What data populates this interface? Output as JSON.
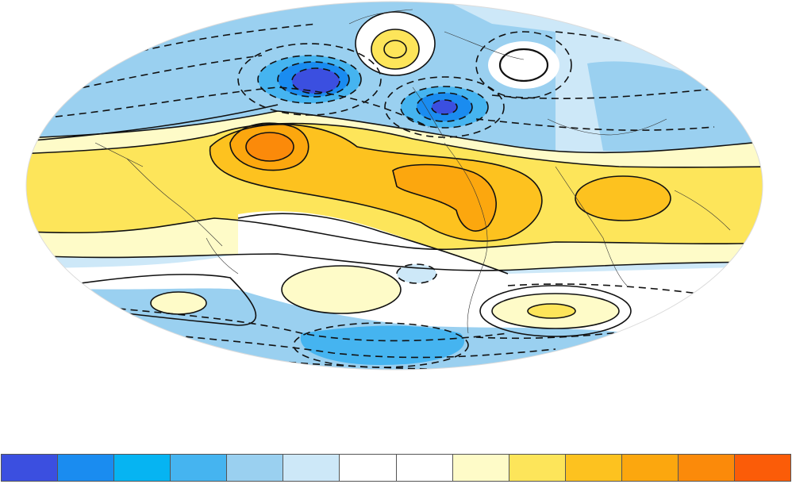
{
  "map": {
    "projection": "mollweide",
    "base_fill": "#ffffff",
    "outline_stroke": "#e0e0e0"
  },
  "palette": {
    "dark_blue": "#3b4fe0",
    "blue": "#1a8cf0",
    "mid_blue": "#45b4f0",
    "light_blue": "#9ad0f0",
    "pale_blue": "#cde8f8",
    "white": "#ffffff",
    "pale_yellow": "#fefbc8",
    "yellow": "#fde55a",
    "gold": "#fdc21f",
    "light_orange": "#fca70e",
    "orange": "#fb8a0a",
    "red_orange": "#fb5c08"
  },
  "colorbar": {
    "colors": [
      "#3b4fe0",
      "#1a8cf0",
      "#06b4f2",
      "#45b4f0",
      "#9ad0f0",
      "#cde8f8",
      "#ffffff",
      "#ffffff",
      "#fefbc8",
      "#fde55a",
      "#fdc21f",
      "#fca70e",
      "#fb8a0a",
      "#fb5c08"
    ]
  }
}
